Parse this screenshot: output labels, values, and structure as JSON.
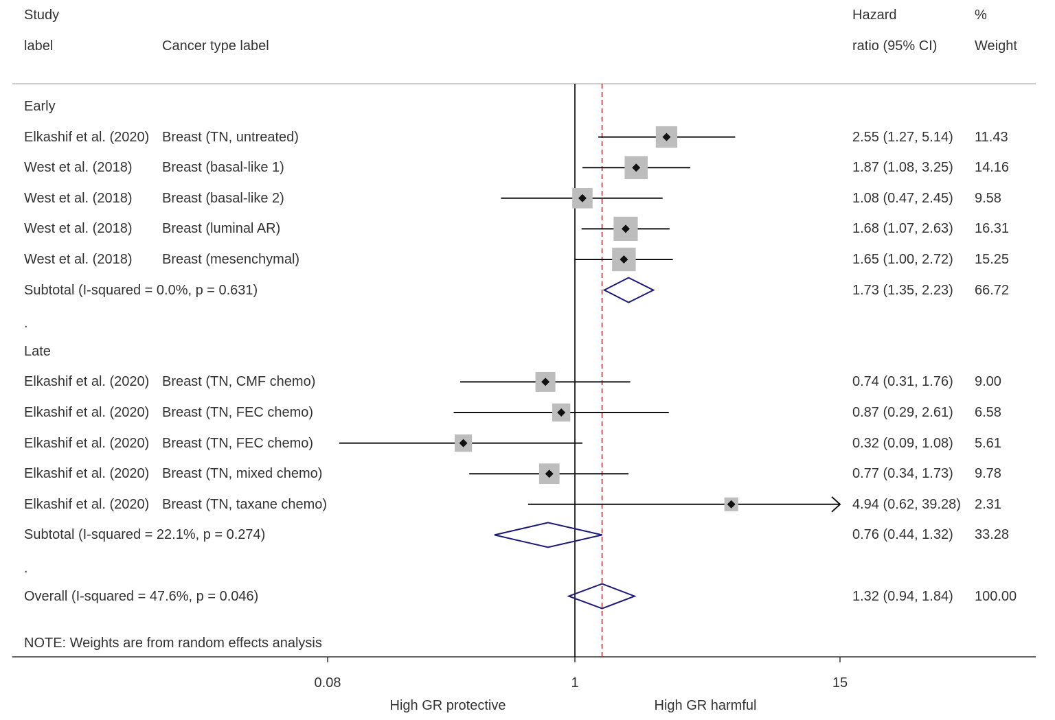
{
  "header": {
    "study_line1": "Study",
    "study_line2": "label",
    "cancer_type": "Cancer type label",
    "hr_line1": "Hazard",
    "hr_line2": "ratio (95% CI)",
    "weight_line1": "%",
    "weight_line2": "Weight"
  },
  "note": "NOTE: Weights are from random effects analysis",
  "colors": {
    "square": "#bdbdbd",
    "diamond": "#1a1a7a",
    "null_line": "#000000",
    "overall_line": "#b03030"
  },
  "chart_data": {
    "type": "forest",
    "scale": "log",
    "xlim": [
      0.08,
      15
    ],
    "xticks": [
      {
        "value": 0.08,
        "label": "0.08"
      },
      {
        "value": 1,
        "label": "1"
      },
      {
        "value": 15,
        "label": "15"
      }
    ],
    "xlabel_left": "High GR protective",
    "xlabel_right": "High GR harmful",
    "null_value": 1,
    "overall_line_value": 1.32,
    "rows": [
      {
        "kind": "group",
        "label": "Early"
      },
      {
        "kind": "study",
        "study": "Elkashif et al. (2020)",
        "cancer": "Breast (TN, untreated)",
        "hr": 2.55,
        "lo": 1.27,
        "hi": 5.14,
        "ci_text": "2.55 (1.27, 5.14)",
        "weight": 11.43,
        "weight_text": "11.43"
      },
      {
        "kind": "study",
        "study": "West et al. (2018)",
        "cancer": "Breast (basal-like 1)",
        "hr": 1.87,
        "lo": 1.08,
        "hi": 3.25,
        "ci_text": "1.87 (1.08, 3.25)",
        "weight": 14.16,
        "weight_text": "14.16"
      },
      {
        "kind": "study",
        "study": "West et al. (2018)",
        "cancer": "Breast (basal-like 2)",
        "hr": 1.08,
        "lo": 0.47,
        "hi": 2.45,
        "ci_text": "1.08 (0.47, 2.45)",
        "weight": 9.58,
        "weight_text": "9.58"
      },
      {
        "kind": "study",
        "study": "West et al. (2018)",
        "cancer": "Breast (luminal AR)",
        "hr": 1.68,
        "lo": 1.07,
        "hi": 2.63,
        "ci_text": "1.68 (1.07, 2.63)",
        "weight": 16.31,
        "weight_text": "16.31"
      },
      {
        "kind": "study",
        "study": "West et al. (2018)",
        "cancer": "Breast (mesenchymal)",
        "hr": 1.65,
        "lo": 1.0,
        "hi": 2.72,
        "ci_text": "1.65 (1.00, 2.72)",
        "weight": 15.25,
        "weight_text": "15.25"
      },
      {
        "kind": "subtotal",
        "label": "Subtotal  (I-squared = 0.0%, p = 0.631)",
        "hr": 1.73,
        "lo": 1.35,
        "hi": 2.23,
        "ci_text": "1.73 (1.35, 2.23)",
        "weight_text": "66.72"
      },
      {
        "kind": "spacer",
        "label": "."
      },
      {
        "kind": "group",
        "label": "Late"
      },
      {
        "kind": "study",
        "study": "Elkashif et al. (2020)",
        "cancer": "Breast (TN, CMF chemo)",
        "hr": 0.74,
        "lo": 0.31,
        "hi": 1.76,
        "ci_text": "0.74 (0.31, 1.76)",
        "weight": 9.0,
        "weight_text": "9.00"
      },
      {
        "kind": "study",
        "study": "Elkashif et al. (2020)",
        "cancer": "Breast (TN, FEC chemo)",
        "hr": 0.87,
        "lo": 0.29,
        "hi": 2.61,
        "ci_text": "0.87 (0.29, 2.61)",
        "weight": 6.58,
        "weight_text": "6.58"
      },
      {
        "kind": "study",
        "study": "Elkashif et al. (2020)",
        "cancer": "Breast (TN, FEC chemo)",
        "hr": 0.32,
        "lo": 0.09,
        "hi": 1.08,
        "ci_text": "0.32 (0.09, 1.08)",
        "weight": 5.61,
        "weight_text": "5.61"
      },
      {
        "kind": "study",
        "study": "Elkashif et al. (2020)",
        "cancer": "Breast (TN, mixed chemo)",
        "hr": 0.77,
        "lo": 0.34,
        "hi": 1.73,
        "ci_text": "0.77 (0.34, 1.73)",
        "weight": 9.78,
        "weight_text": "9.78"
      },
      {
        "kind": "study",
        "study": "Elkashif et al. (2020)",
        "cancer": "Breast (TN, taxane chemo)",
        "hr": 4.94,
        "lo": 0.62,
        "hi": 39.28,
        "ci_text": "4.94 (0.62, 39.28)",
        "weight": 2.31,
        "weight_text": "2.31",
        "arrow_right": true
      },
      {
        "kind": "subtotal",
        "label": "Subtotal  (I-squared = 22.1%, p = 0.274)",
        "hr": 0.76,
        "lo": 0.44,
        "hi": 1.32,
        "ci_text": "0.76 (0.44, 1.32)",
        "weight_text": "33.28"
      },
      {
        "kind": "spacer",
        "label": "."
      },
      {
        "kind": "overall",
        "label": "Overall  (I-squared = 47.6%, p = 0.046)",
        "hr": 1.32,
        "lo": 0.94,
        "hi": 1.84,
        "ci_text": "1.32 (0.94, 1.84)",
        "weight_text": "100.00"
      }
    ]
  }
}
